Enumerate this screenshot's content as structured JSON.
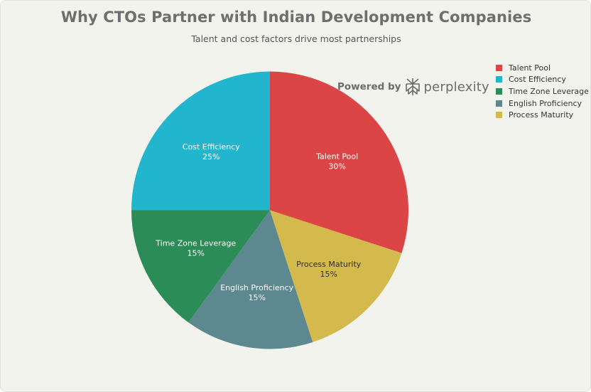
{
  "chart_data": {
    "type": "pie",
    "title": "Why CTOs Partner with Indian Development Companies",
    "subtitle": "Talent and cost factors drive most partnerships",
    "unit": "%",
    "slices": [
      {
        "label": "Talent Pool",
        "value": 30,
        "percent_label": "30%",
        "color": "#dc4545"
      },
      {
        "label": "Process Maturity",
        "value": 15,
        "percent_label": "15%",
        "color": "#d4b94c"
      },
      {
        "label": "English Proficiency",
        "value": 15,
        "percent_label": "15%",
        "color": "#5d8890"
      },
      {
        "label": "Time Zone Leverage",
        "value": 15,
        "percent_label": "15%",
        "color": "#2b8c57"
      },
      {
        "label": "Cost Efficiency",
        "value": 25,
        "percent_label": "25%",
        "color": "#21b6ce"
      }
    ],
    "legend": {
      "position": "top-right",
      "entries": [
        {
          "label": "Talent Pool",
          "color": "#dc4545"
        },
        {
          "label": "Cost Efficiency",
          "color": "#21b6ce"
        },
        {
          "label": "Time Zone Leverage",
          "color": "#2b8c57"
        },
        {
          "label": "English Proficiency",
          "color": "#5d8890"
        },
        {
          "label": "Process Maturity",
          "color": "#d4b94c"
        }
      ]
    }
  },
  "watermark": {
    "prefix": "Powered by",
    "brand": "perplexity",
    "logo_icon": "perplexity-logo-icon"
  },
  "colors": {
    "background": "#f3f3ee",
    "title": "#6e6e6e",
    "subtitle": "#555555"
  }
}
